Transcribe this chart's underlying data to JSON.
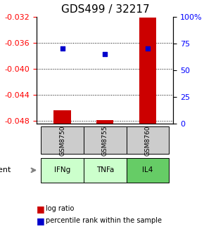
{
  "title": "GDS499 / 32217",
  "samples": [
    "GSM8750",
    "GSM8755",
    "GSM8760"
  ],
  "agents": [
    "IFNg",
    "TNFa",
    "IL4"
  ],
  "log_ratio": [
    -0.0464,
    -0.0479,
    -0.0322
  ],
  "percentile_rank": [
    70,
    65,
    70
  ],
  "ylim_left": [
    -0.0485,
    -0.032
  ],
  "ylim_right": [
    0,
    100
  ],
  "yticks_left": [
    -0.048,
    -0.044,
    -0.04,
    -0.036,
    -0.032
  ],
  "yticks_right": [
    0,
    25,
    50,
    75,
    100
  ],
  "ytick_labels_left": [
    "-0.048",
    "-0.044",
    "-0.040",
    "-0.036",
    "-0.032"
  ],
  "ytick_labels_right": [
    "0",
    "25",
    "50",
    "75",
    "100%"
  ],
  "bar_color": "#cc0000",
  "dot_color": "#0000cc",
  "grid_color": "#000000",
  "agent_colors": [
    "#ccffcc",
    "#ccffcc",
    "#66cc66"
  ],
  "sample_bg": "#cccccc",
  "title_fontsize": 11,
  "tick_fontsize": 8,
  "bar_width": 0.4,
  "legend_log_color": "#cc0000",
  "legend_dot_color": "#0000cc"
}
